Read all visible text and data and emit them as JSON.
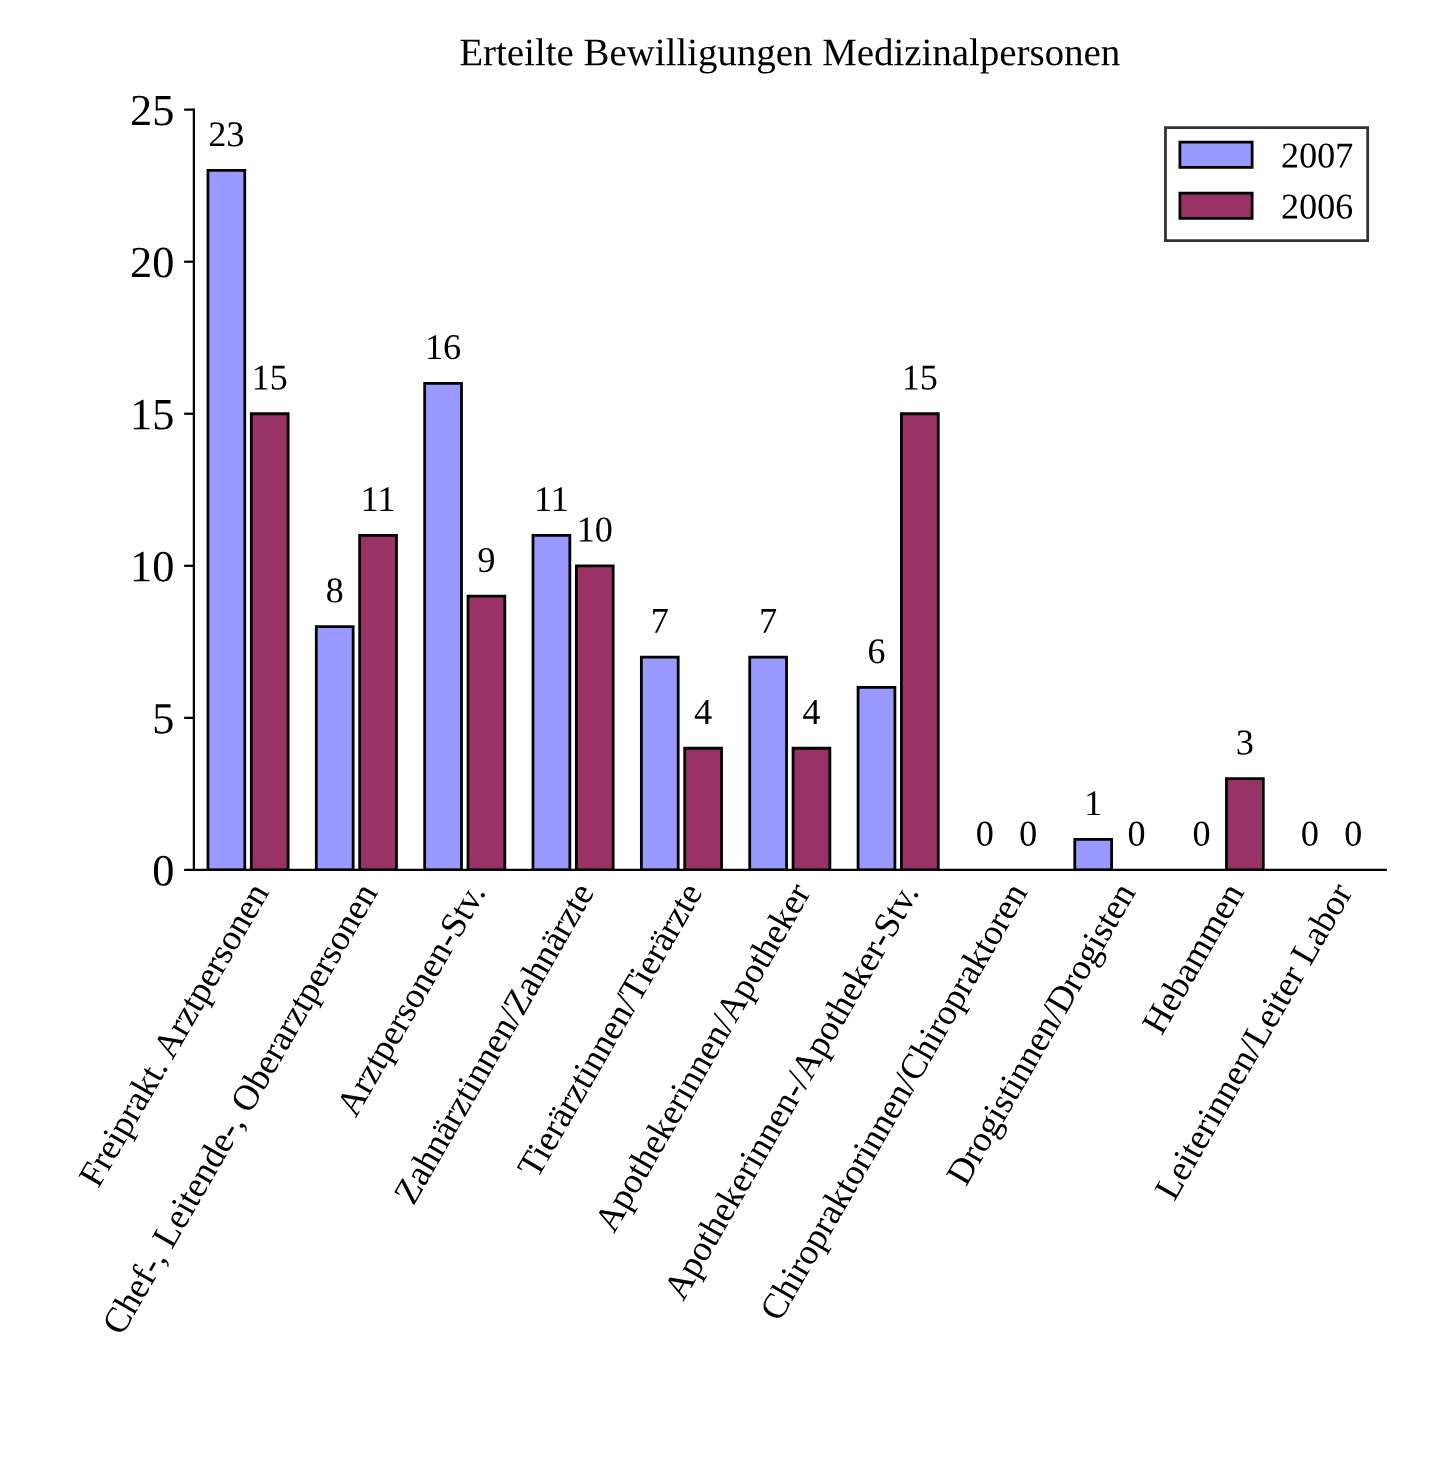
{
  "chart_data": {
    "type": "bar",
    "title": "Erteilte Bewilligungen Medizinalpersonen",
    "categories": [
      "Freiprakt. Arztpersonen",
      "Chef-, Leitende-, Oberarztpersonen",
      "Arztpersonen-Stv.",
      "Zahnärztinnen/Zahnärzte",
      "Tierärztinnen/Tierärzte",
      "Apothekerinnen/Apotheker",
      "Apothekerinnen-/Apotheker-Stv.",
      "Chiropraktorinnen/Chiropraktoren",
      "Drogistinnen/Drogisten",
      "Hebammen",
      "Leiterinnen/Leiter Labor"
    ],
    "series": [
      {
        "name": "2007",
        "color": "#9999ff",
        "values": [
          23,
          8,
          16,
          11,
          7,
          7,
          6,
          0,
          1,
          0,
          0
        ]
      },
      {
        "name": "2006",
        "color": "#993366",
        "values": [
          15,
          11,
          9,
          10,
          4,
          4,
          15,
          0,
          0,
          3,
          0
        ]
      }
    ],
    "ylim": [
      0,
      25
    ],
    "yticks": [
      0,
      5,
      10,
      15,
      20,
      25
    ],
    "grid": false,
    "legend": "top right",
    "data_labels": true
  }
}
